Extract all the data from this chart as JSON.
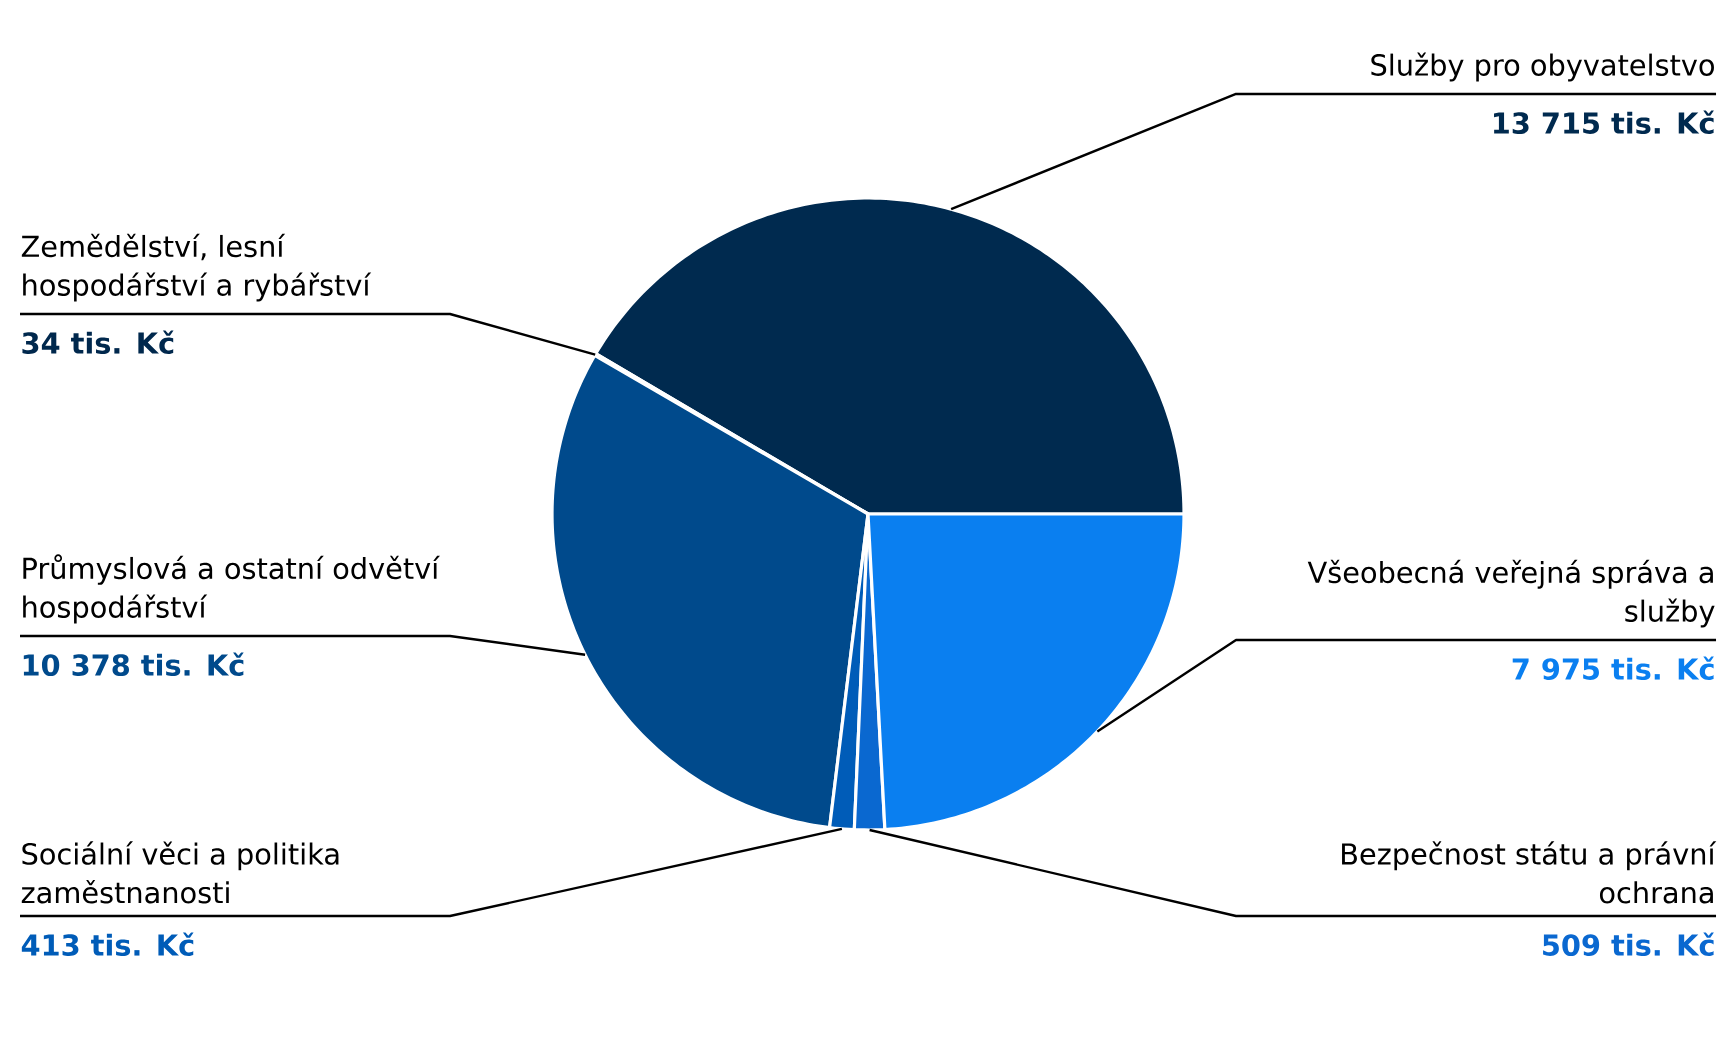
{
  "chart_data": {
    "type": "pie",
    "categories": [
      "Služby pro obyvatelstvo",
      "Zemědělství, lesní hospodářství a rybářství",
      "Průmyslová a ostatní odvětví hospodářství",
      "Sociální věci a politika zaměstnanosti",
      "Bezpečnost státu a právní ochrana",
      "Všeobecná veřejná správa a služby"
    ],
    "values": [
      13715,
      34,
      10378,
      413,
      509,
      7975
    ],
    "value_labels": [
      "13 715 tis. Kč",
      "34 tis. Kč",
      "10 378 tis. Kč",
      "413 tis. Kč",
      "509 tis. Kč",
      "7 975 tis. Kč"
    ],
    "colors": [
      "#002a4f",
      "#00284d",
      "#004a8c",
      "#005cb8",
      "#0a68d0",
      "#0a7ff0"
    ]
  }
}
